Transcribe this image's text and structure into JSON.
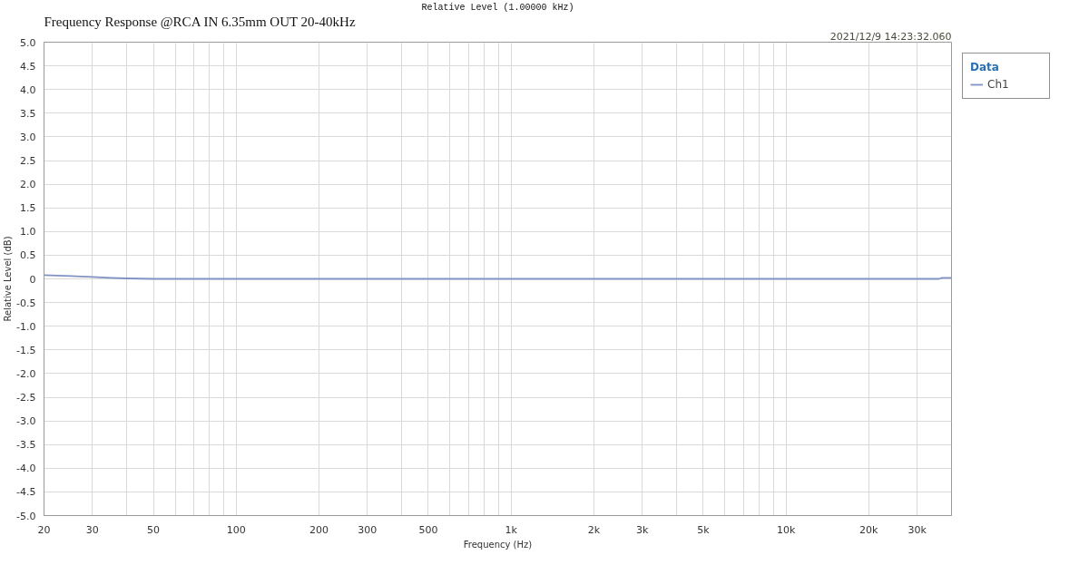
{
  "chart_data": {
    "type": "line",
    "title": "Frequency Response @RCA IN 6.35mm OUT 20-40kHz",
    "subtitle": "Relative Level (1.00000 kHz)",
    "xlabel": "Frequency (Hz)",
    "ylabel": "Relative Level (dB)",
    "legend_title": "Data",
    "annotations": [
      "2021/12/9 14:23:32.060"
    ],
    "log": "x",
    "xlim": [
      20,
      40000
    ],
    "xticks": [
      20,
      30,
      {
        "value": 40,
        "label": null
      },
      50,
      {
        "value": 60,
        "label": null
      },
      {
        "value": 70,
        "label": null
      },
      {
        "value": 80,
        "label": null
      },
      {
        "value": 90,
        "label": null
      },
      100,
      200,
      300,
      {
        "value": 400,
        "label": null
      },
      500,
      {
        "value": 600,
        "label": null
      },
      {
        "value": 700,
        "label": null
      },
      {
        "value": 800,
        "label": null
      },
      {
        "value": 900,
        "label": null
      },
      {
        "value": 1000,
        "label": "1k"
      },
      {
        "value": 2000,
        "label": "2k"
      },
      {
        "value": 3000,
        "label": "3k"
      },
      {
        "value": 4000,
        "label": null
      },
      {
        "value": 5000,
        "label": "5k"
      },
      {
        "value": 6000,
        "label": null
      },
      {
        "value": 7000,
        "label": null
      },
      {
        "value": 8000,
        "label": null
      },
      {
        "value": 9000,
        "label": null
      },
      {
        "value": 10000,
        "label": "10k"
      },
      {
        "value": 20000,
        "label": "20k"
      },
      {
        "value": 30000,
        "label": "30k"
      }
    ],
    "ylim": [
      -5,
      5
    ],
    "yticks": [
      {
        "value": 5,
        "label": "5.0"
      },
      4.5,
      {
        "value": 4,
        "label": "4.0"
      },
      3.5,
      {
        "value": 3,
        "label": "3.0"
      },
      2.5,
      {
        "value": 2,
        "label": "2.0"
      },
      1.5,
      {
        "value": 1,
        "label": "1.0"
      },
      0.5,
      0,
      -0.5,
      {
        "value": -1,
        "label": "-1.0"
      },
      -1.5,
      {
        "value": -2,
        "label": "-2.0"
      },
      -2.5,
      {
        "value": -3,
        "label": "-3.0"
      },
      -3.5,
      {
        "value": -4,
        "label": "-4.0"
      },
      -4.5,
      {
        "value": -5,
        "label": "-5.0"
      }
    ],
    "grid": true,
    "legend": "top right",
    "x": [
      20,
      25,
      30,
      35,
      40,
      50,
      100,
      1000,
      10000,
      20000,
      30000,
      36000,
      37000,
      40000
    ],
    "series": [
      {
        "name": "Ch1",
        "color": "#8093c4",
        "values": [
          0.08,
          0.06,
          0.04,
          0.02,
          0.01,
          0,
          0,
          0,
          0,
          0,
          0,
          0,
          0.02,
          0.02
        ]
      }
    ]
  }
}
